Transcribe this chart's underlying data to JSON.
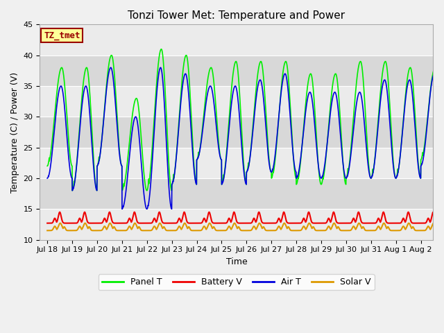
{
  "title": "Tonzi Tower Met: Temperature and Power",
  "xlabel": "Time",
  "ylabel": "Temperature (C) / Power (V)",
  "ylim": [
    10,
    45
  ],
  "xlim_days": [
    -0.3,
    15.5
  ],
  "x_tick_labels": [
    "Jul 18",
    "Jul 19",
    "Jul 20",
    "Jul 21",
    "Jul 22",
    "Jul 23",
    "Jul 24",
    "Jul 25",
    "Jul 26",
    "Jul 27",
    "Jul 28",
    "Jul 29",
    "Jul 30",
    "Jul 31",
    "Aug 1",
    "Aug 2"
  ],
  "x_tick_positions": [
    0,
    1,
    2,
    3,
    4,
    5,
    6,
    7,
    8,
    9,
    10,
    11,
    12,
    13,
    14,
    15
  ],
  "panel_t_color": "#00EE00",
  "air_t_color": "#0000DD",
  "battery_v_color": "#EE0000",
  "solar_v_color": "#DD9900",
  "background_color": "#F0F0F0",
  "plot_bg_color_light": "#EBEBEB",
  "plot_bg_color_dark": "#D8D8D8",
  "legend_entries": [
    "Panel T",
    "Battery V",
    "Air T",
    "Solar V"
  ],
  "label_text": "TZ_tmet",
  "label_bg": "#FFFF99",
  "label_border": "#990000",
  "grid_color": "#FFFFFF",
  "title_fontsize": 11,
  "axis_fontsize": 9,
  "tick_fontsize": 8
}
